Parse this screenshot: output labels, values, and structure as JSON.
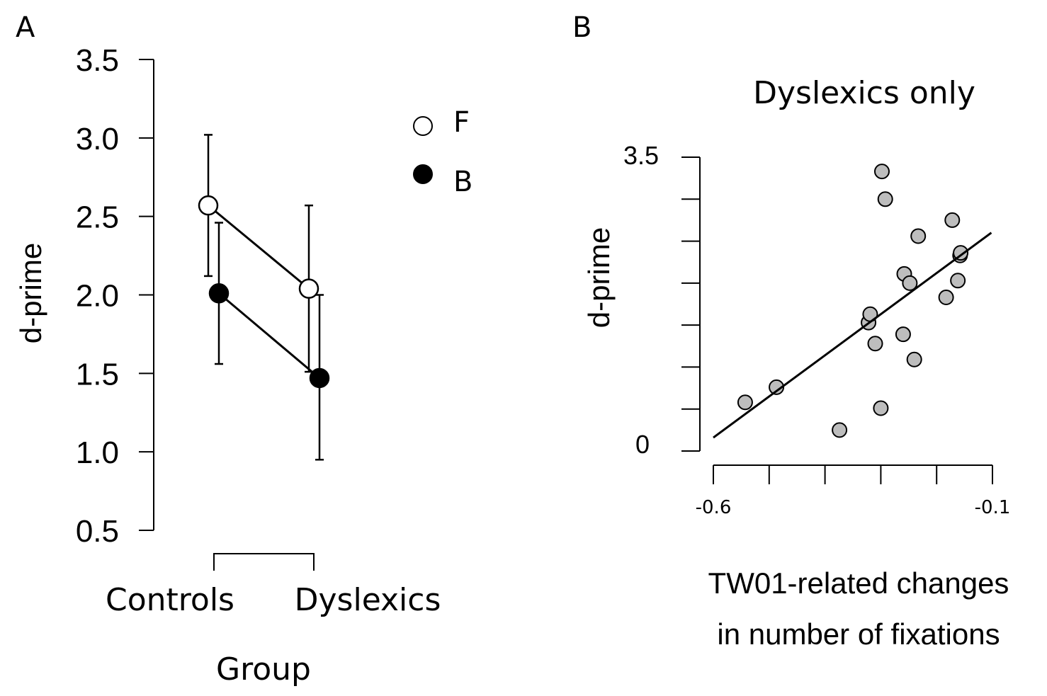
{
  "panels": {
    "a_label": "A",
    "b_label": "B"
  },
  "chart_data": [
    {
      "type": "line",
      "panel": "A",
      "title": "",
      "xlabel": "Group",
      "ylabel": "d-prime",
      "categories": [
        "Controls",
        "Dyslexics"
      ],
      "ylim": [
        0.5,
        3.5
      ],
      "yticks": [
        "0.5",
        "1.0",
        "1.5",
        "2.0",
        "2.5",
        "3.0",
        "3.5"
      ],
      "legend_position": "top-right",
      "grid": false,
      "series": [
        {
          "name": "F",
          "marker_fill": "#ffffff",
          "values": [
            2.57,
            2.04
          ],
          "error_low": [
            2.12,
            1.51
          ],
          "error_high": [
            3.02,
            2.57
          ]
        },
        {
          "name": "B",
          "marker_fill": "#000000",
          "values": [
            2.01,
            1.47
          ],
          "error_low": [
            1.56,
            0.95
          ],
          "error_high": [
            2.46,
            2.0
          ]
        }
      ]
    },
    {
      "type": "scatter",
      "panel": "B",
      "title": "Dyslexics only",
      "xlabel_lines": [
        "TW01-related changes",
        "in number of fixations"
      ],
      "ylabel": "d-prime",
      "xlim": [
        -0.6,
        -0.1
      ],
      "ylim": [
        0,
        3.5
      ],
      "xtick_labels": [
        "-0.6",
        "-0.1"
      ],
      "ytick_labels": [
        "0",
        "3.5"
      ],
      "point_color": "#bdbdbd",
      "points": [
        {
          "x": -0.543,
          "y": 0.58
        },
        {
          "x": -0.487,
          "y": 0.76
        },
        {
          "x": -0.374,
          "y": 0.25
        },
        {
          "x": -0.322,
          "y": 1.53
        },
        {
          "x": -0.319,
          "y": 1.63
        },
        {
          "x": -0.31,
          "y": 1.28
        },
        {
          "x": -0.3,
          "y": 0.51
        },
        {
          "x": -0.298,
          "y": 3.33
        },
        {
          "x": -0.292,
          "y": 3.0
        },
        {
          "x": -0.26,
          "y": 1.39
        },
        {
          "x": -0.258,
          "y": 2.11
        },
        {
          "x": -0.248,
          "y": 2.0
        },
        {
          "x": -0.24,
          "y": 1.09
        },
        {
          "x": -0.233,
          "y": 2.56
        },
        {
          "x": -0.183,
          "y": 1.83
        },
        {
          "x": -0.172,
          "y": 2.75
        },
        {
          "x": -0.162,
          "y": 2.03
        },
        {
          "x": -0.158,
          "y": 2.33
        },
        {
          "x": -0.157,
          "y": 2.36
        }
      ],
      "fit_line": {
        "x": [
          -0.6,
          -0.102
        ],
        "y": [
          0.16,
          2.6
        ]
      }
    }
  ]
}
